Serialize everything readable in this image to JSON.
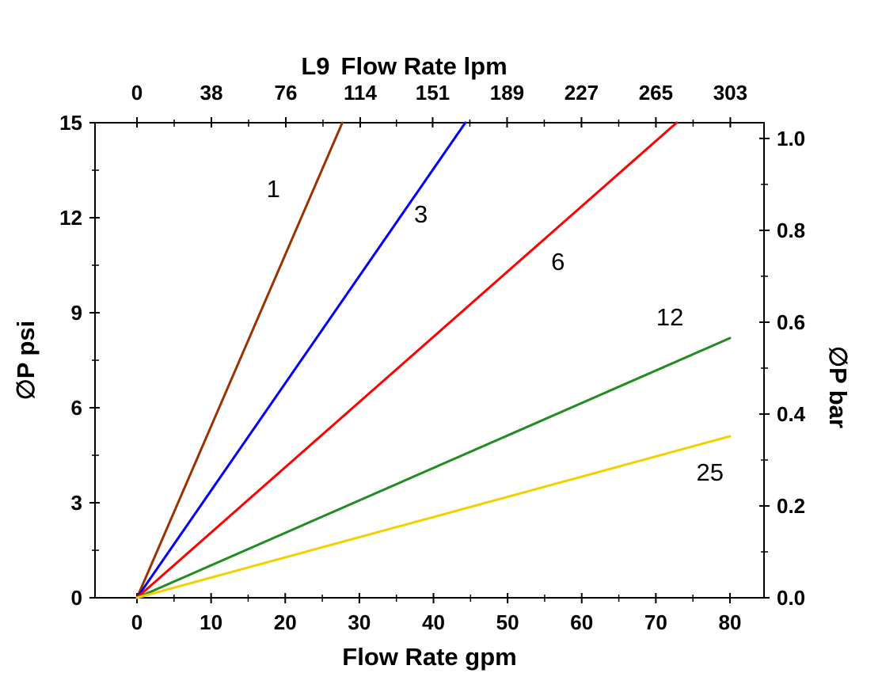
{
  "chart_data": {
    "type": "line",
    "title": "L9",
    "xlabel_top": "Flow Rate lpm",
    "xlabel_bottom": "Flow Rate gpm",
    "ylabel_left": "∅P psi",
    "ylabel_right": "∅P bar",
    "xlim_gpm": [
      0,
      80
    ],
    "ylim_psi": [
      0,
      15
    ],
    "x_bottom_ticks_gpm": [
      0,
      10,
      20,
      30,
      40,
      50,
      60,
      70,
      80
    ],
    "x_top_ticks_lpm": [
      0,
      38,
      76,
      114,
      151,
      189,
      227,
      265,
      303
    ],
    "y_left_ticks_psi": [
      0,
      3,
      6,
      9,
      12,
      15
    ],
    "y_right_ticks_bar": [
      "0.0",
      "0.2",
      "0.4",
      "0.6",
      "0.8",
      "1.0"
    ],
    "grid": false,
    "legend": "labels-on-lines",
    "frame_color": "#000000",
    "lpm_per_gpm": 3.78541,
    "psi_per_bar": 14.5038,
    "series": [
      {
        "name": "1",
        "color": "#993300",
        "points": [
          [
            0,
            0
          ],
          [
            27.7,
            15
          ]
        ],
        "label_pos": [
          18.4,
          12.9
        ]
      },
      {
        "name": "3",
        "color": "#0000FF",
        "points": [
          [
            0,
            0
          ],
          [
            44.3,
            15
          ]
        ],
        "label_pos": [
          38.3,
          12.1
        ]
      },
      {
        "name": "6",
        "color": "#FF0000",
        "points": [
          [
            0,
            0
          ],
          [
            72.8,
            15
          ]
        ],
        "label_pos": [
          56.8,
          10.6
        ]
      },
      {
        "name": "12",
        "color": "#228B22",
        "points": [
          [
            0,
            0
          ],
          [
            80,
            8.2
          ]
        ],
        "label_pos": [
          71.9,
          8.85
        ]
      },
      {
        "name": "25",
        "color": "#F5D000",
        "points": [
          [
            0,
            0
          ],
          [
            80,
            5.1
          ]
        ],
        "label_pos": [
          77.3,
          3.95
        ]
      }
    ]
  }
}
